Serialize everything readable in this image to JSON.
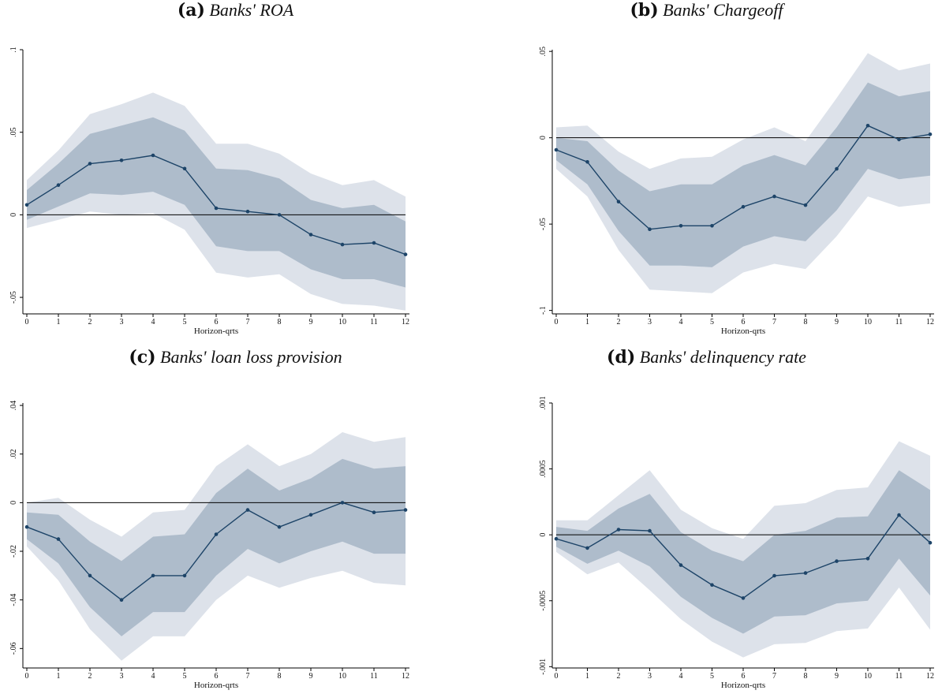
{
  "chart_data": [
    {
      "type": "line",
      "panel_label": "(a)",
      "title": "Banks' ROA",
      "xlabel": "Horizon-qrts",
      "ylabel": "",
      "x": [
        0,
        1,
        2,
        3,
        4,
        5,
        6,
        7,
        8,
        9,
        10,
        11,
        12
      ],
      "xticks": [
        "0",
        "1",
        "2",
        "3",
        "4",
        "5",
        "6",
        "7",
        "8",
        "9",
        "10",
        "11",
        "12"
      ],
      "ylim": [
        -0.06,
        0.1
      ],
      "yticks": [
        -0.05,
        0,
        0.05,
        0.1
      ],
      "ytick_labels": [
        "-.05",
        "0",
        ".05",
        ".1"
      ],
      "reference_line": 0,
      "series": [
        {
          "values": [
            0.006,
            0.018,
            0.031,
            0.033,
            0.036,
            0.028,
            0.004,
            0.002,
            0.0,
            -0.012,
            -0.018,
            -0.017,
            -0.024
          ],
          "band_inner_lower": [
            -0.003,
            0.005,
            0.013,
            0.012,
            0.014,
            0.006,
            -0.019,
            -0.022,
            -0.022,
            -0.033,
            -0.039,
            -0.039,
            -0.044
          ],
          "band_inner_upper": [
            0.015,
            0.031,
            0.049,
            0.054,
            0.059,
            0.051,
            0.028,
            0.027,
            0.022,
            0.009,
            0.004,
            0.006,
            -0.004
          ],
          "band_outer_lower": [
            -0.008,
            -0.003,
            0.002,
            0.0,
            0.001,
            -0.009,
            -0.035,
            -0.038,
            -0.036,
            -0.048,
            -0.054,
            -0.055,
            -0.058
          ],
          "band_outer_upper": [
            0.021,
            0.039,
            0.061,
            0.067,
            0.074,
            0.066,
            0.043,
            0.043,
            0.037,
            0.025,
            0.018,
            0.021,
            0.011
          ]
        }
      ],
      "grid": false,
      "colors": {
        "line": "#1d4468",
        "band_inner": "#aebccb",
        "band_outer": "#dde2ea"
      }
    },
    {
      "type": "line",
      "panel_label": "(b)",
      "title": "Banks' Chargeoff",
      "xlabel": "Horizon-qrts",
      "ylabel": "",
      "x": [
        0,
        1,
        2,
        3,
        4,
        5,
        6,
        7,
        8,
        9,
        10,
        11,
        12
      ],
      "xticks": [
        "0",
        "1",
        "2",
        "3",
        "4",
        "5",
        "6",
        "7",
        "8",
        "9",
        "10",
        "11",
        "12"
      ],
      "ylim": [
        -0.102,
        0.051
      ],
      "yticks": [
        -0.1,
        -0.05,
        0,
        0.05
      ],
      "ytick_labels": [
        "-.1",
        "-.05",
        "0",
        ".05"
      ],
      "reference_line": 0,
      "series": [
        {
          "values": [
            -0.007,
            -0.014,
            -0.037,
            -0.053,
            -0.051,
            -0.051,
            -0.04,
            -0.034,
            -0.039,
            -0.018,
            0.007,
            -0.001,
            0.002
          ],
          "band_inner_lower": [
            -0.013,
            -0.027,
            -0.054,
            -0.074,
            -0.074,
            -0.075,
            -0.063,
            -0.057,
            -0.06,
            -0.042,
            -0.018,
            -0.024,
            -0.022
          ],
          "band_inner_upper": [
            0.0,
            -0.002,
            -0.019,
            -0.031,
            -0.027,
            -0.027,
            -0.016,
            -0.01,
            -0.016,
            0.006,
            0.032,
            0.024,
            0.027
          ],
          "band_outer_lower": [
            -0.018,
            -0.034,
            -0.065,
            -0.088,
            -0.089,
            -0.09,
            -0.078,
            -0.073,
            -0.076,
            -0.057,
            -0.034,
            -0.04,
            -0.038
          ],
          "band_outer_upper": [
            0.006,
            0.007,
            -0.008,
            -0.018,
            -0.012,
            -0.011,
            -0.001,
            0.006,
            -0.002,
            0.023,
            0.049,
            0.039,
            0.043
          ]
        }
      ],
      "grid": false,
      "colors": {
        "line": "#1d4468",
        "band_inner": "#aebccb",
        "band_outer": "#dde2ea"
      }
    },
    {
      "type": "line",
      "panel_label": "(c)",
      "title": "Banks' loan loss provision",
      "xlabel": "Horizon-qrts",
      "ylabel": "",
      "x": [
        0,
        1,
        2,
        3,
        4,
        5,
        6,
        7,
        8,
        9,
        10,
        11,
        12
      ],
      "xticks": [
        "0",
        "1",
        "2",
        "3",
        "4",
        "5",
        "6",
        "7",
        "8",
        "9",
        "10",
        "11",
        "12"
      ],
      "ylim": [
        -0.068,
        0.041
      ],
      "yticks": [
        -0.06,
        -0.04,
        -0.02,
        0,
        0.02,
        0.04
      ],
      "ytick_labels": [
        "-.06",
        "-.04",
        "-.02",
        "0",
        ".02",
        ".04"
      ],
      "reference_line": 0,
      "series": [
        {
          "values": [
            -0.01,
            -0.015,
            -0.03,
            -0.04,
            -0.03,
            -0.03,
            -0.013,
            -0.003,
            -0.01,
            -0.005,
            0.0,
            -0.004,
            -0.003
          ],
          "band_inner_lower": [
            -0.015,
            -0.025,
            -0.043,
            -0.055,
            -0.045,
            -0.045,
            -0.03,
            -0.019,
            -0.025,
            -0.02,
            -0.016,
            -0.021,
            -0.021
          ],
          "band_inner_upper": [
            -0.004,
            -0.005,
            -0.016,
            -0.024,
            -0.014,
            -0.013,
            0.004,
            0.014,
            0.005,
            0.01,
            0.018,
            0.014,
            0.015
          ],
          "band_outer_lower": [
            -0.018,
            -0.032,
            -0.052,
            -0.065,
            -0.055,
            -0.055,
            -0.04,
            -0.03,
            -0.035,
            -0.031,
            -0.028,
            -0.033,
            -0.034
          ],
          "band_outer_upper": [
            0.0,
            0.002,
            -0.007,
            -0.014,
            -0.004,
            -0.003,
            0.015,
            0.024,
            0.015,
            0.02,
            0.029,
            0.025,
            0.027
          ]
        }
      ],
      "grid": false,
      "colors": {
        "line": "#1d4468",
        "band_inner": "#aebccb",
        "band_outer": "#dde2ea"
      }
    },
    {
      "type": "line",
      "panel_label": "(d)",
      "title": "Banks' delinquency rate",
      "xlabel": "Horizon-qrts",
      "ylabel": "",
      "x": [
        0,
        1,
        2,
        3,
        4,
        5,
        6,
        7,
        8,
        9,
        10,
        11,
        12
      ],
      "xticks": [
        "0",
        "1",
        "2",
        "3",
        "4",
        "5",
        "6",
        "7",
        "8",
        "9",
        "10",
        "11",
        "12"
      ],
      "ylim": [
        -0.00101,
        0.001
      ],
      "yticks": [
        -0.001,
        -0.0005,
        0,
        0.0005,
        0.001
      ],
      "ytick_labels": [
        "-.001",
        "-.0005",
        "0",
        ".0005",
        ".001"
      ],
      "reference_line": 0,
      "series": [
        {
          "values": [
            -3e-05,
            -0.0001,
            4e-05,
            3e-05,
            -0.00023,
            -0.00038,
            -0.00048,
            -0.00031,
            -0.00029,
            -0.0002,
            -0.00018,
            0.00015,
            -6e-05
          ],
          "band_inner_lower": [
            -9e-05,
            -0.00022,
            -0.00012,
            -0.00024,
            -0.00047,
            -0.00063,
            -0.00075,
            -0.00062,
            -0.00061,
            -0.00052,
            -0.0005,
            -0.00018,
            -0.00046
          ],
          "band_inner_upper": [
            6e-05,
            3e-05,
            0.0002,
            0.00031,
            2e-05,
            -0.00012,
            -0.0002,
            0.0,
            3e-05,
            0.00013,
            0.00014,
            0.00049,
            0.00034
          ],
          "band_outer_lower": [
            -0.00013,
            -0.0003,
            -0.00021,
            -0.00042,
            -0.00064,
            -0.00081,
            -0.00093,
            -0.00083,
            -0.00082,
            -0.00073,
            -0.00071,
            -0.0004,
            -0.00072
          ],
          "band_outer_upper": [
            0.00011,
            0.00011,
            0.0003,
            0.00049,
            0.00019,
            5e-05,
            -3e-05,
            0.00022,
            0.00024,
            0.00034,
            0.00036,
            0.00071,
            0.0006
          ]
        }
      ],
      "grid": false,
      "colors": {
        "line": "#1d4468",
        "band_inner": "#aebccb",
        "band_outer": "#dde2ea"
      }
    }
  ]
}
